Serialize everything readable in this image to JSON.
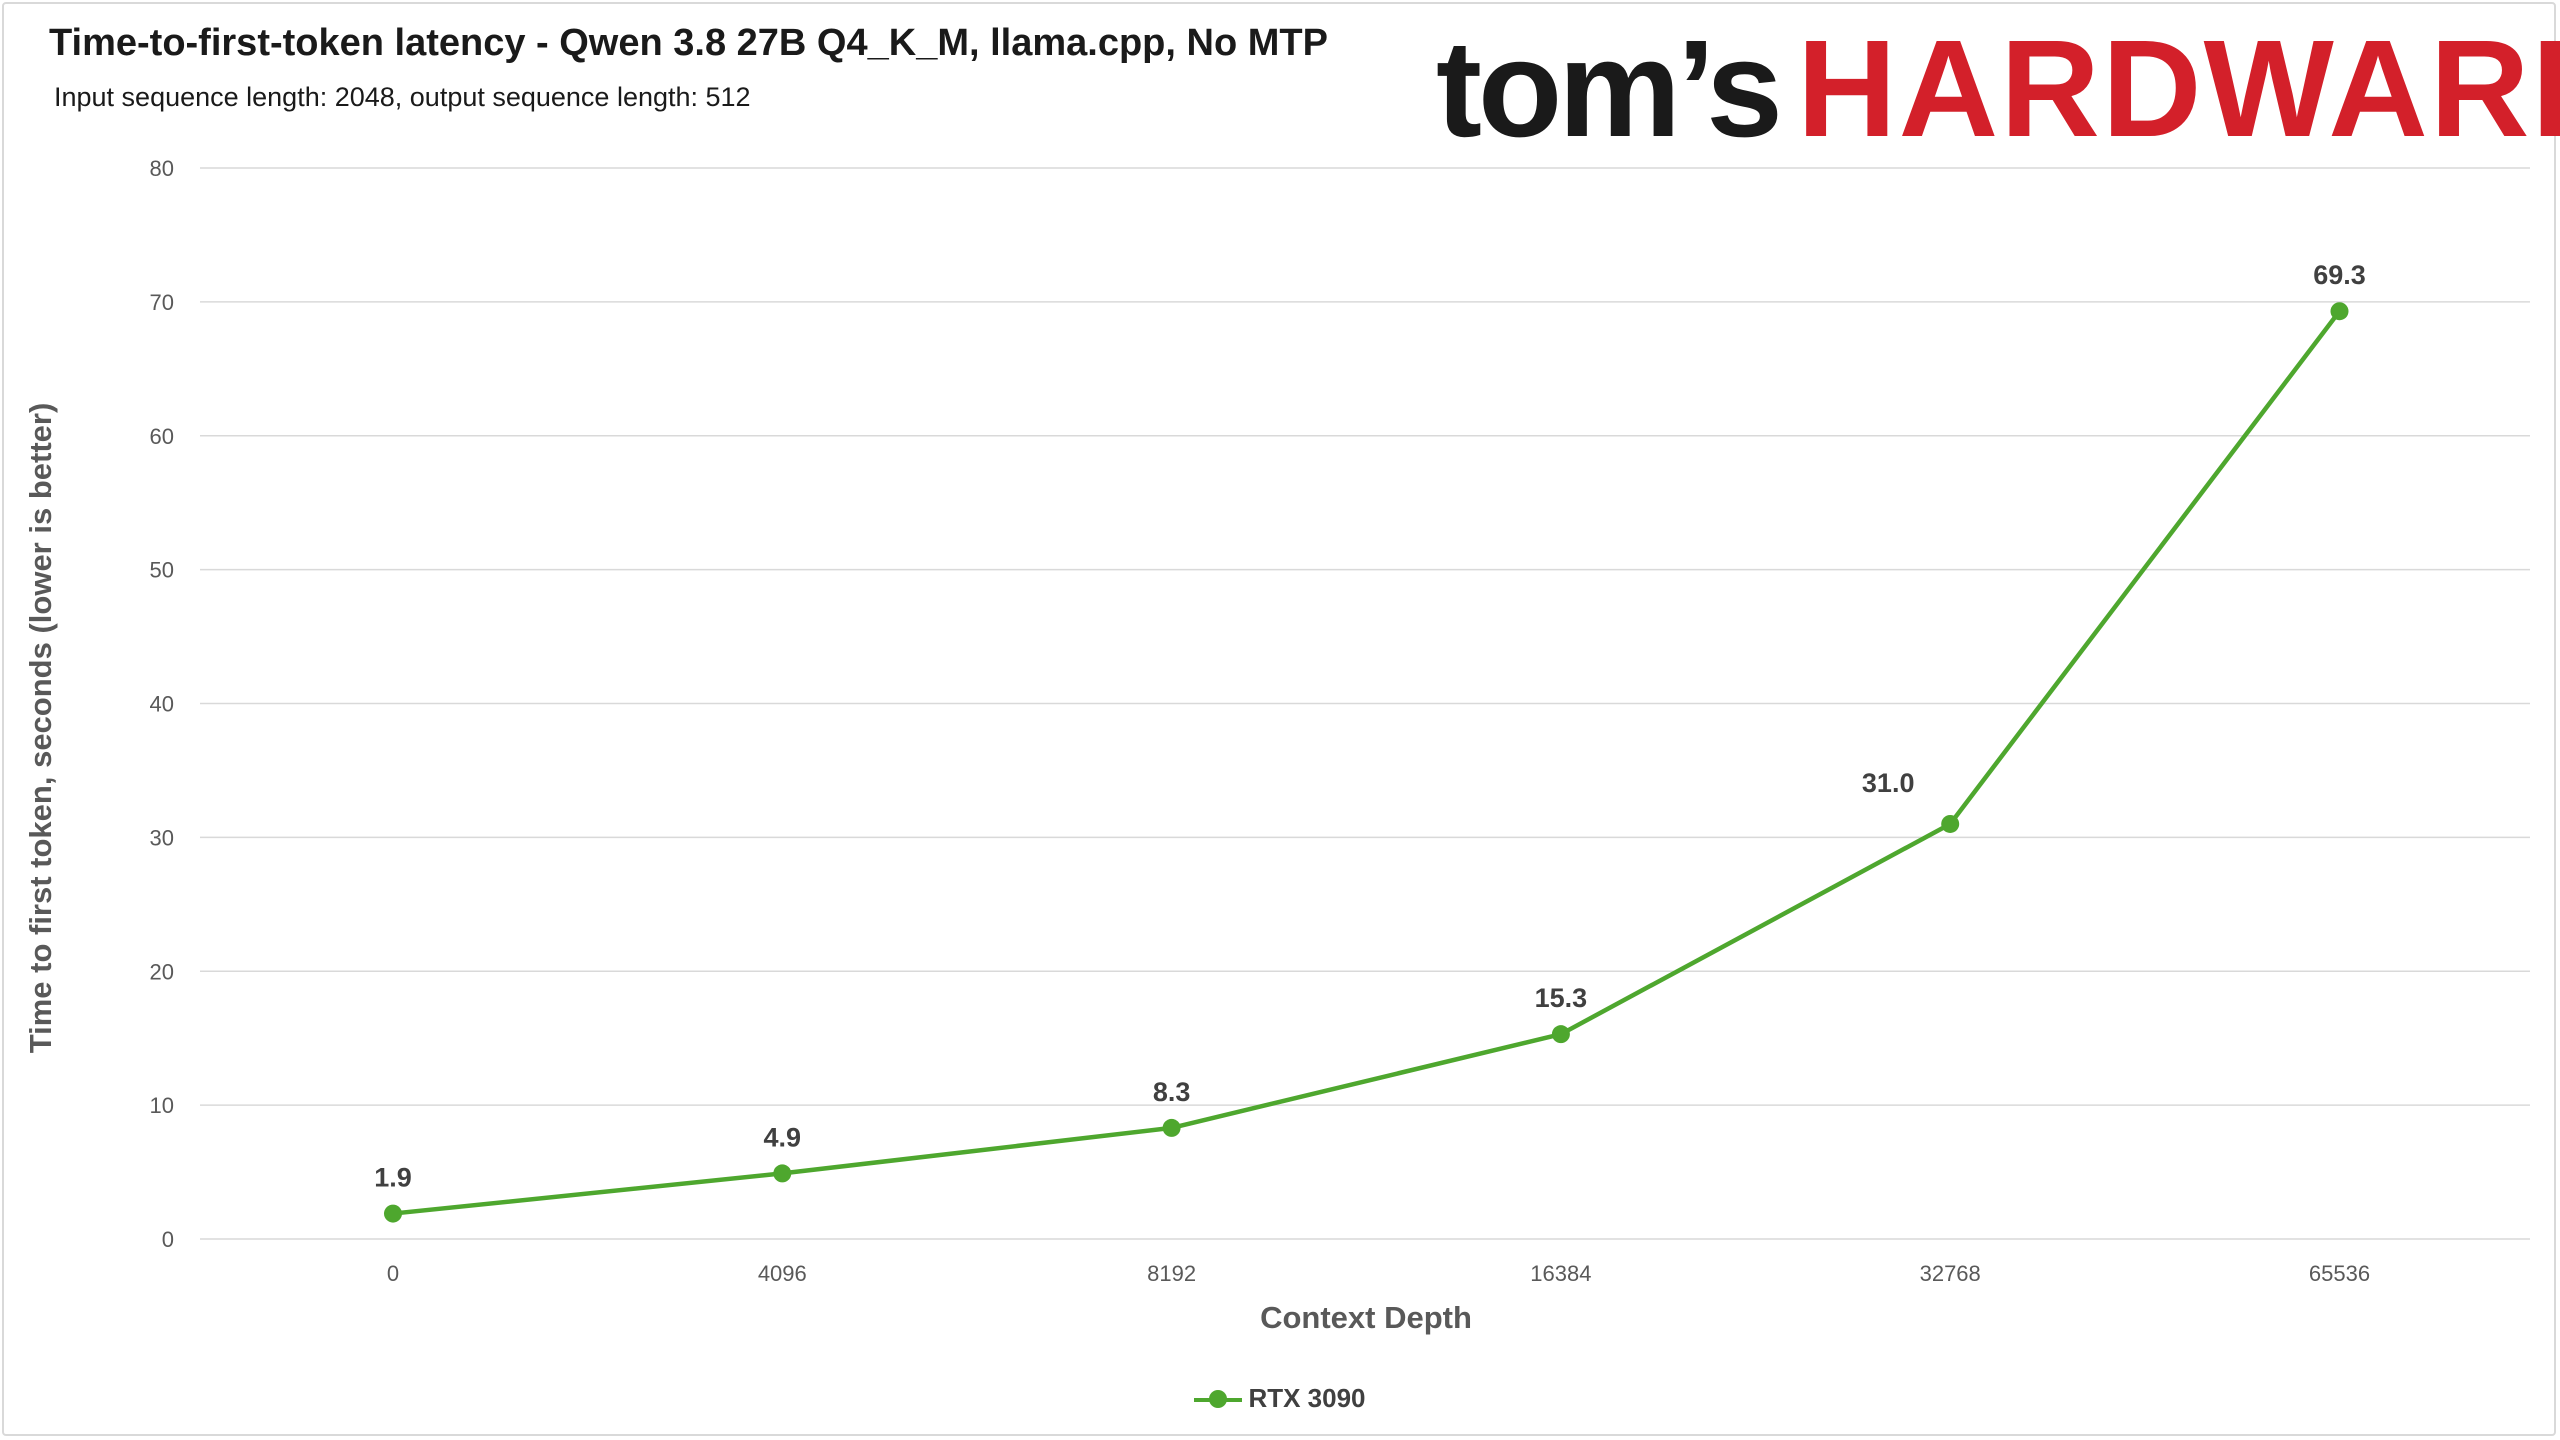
{
  "header": {
    "title": "Time-to-first-token latency - Qwen 3.8 27B Q4_K_M, llama.cpp, No MTP",
    "subtitle": "Input sequence length: 2048, output sequence length: 512"
  },
  "logo": {
    "part1": "tom’s",
    "part2": "HARDWARE"
  },
  "colors": {
    "series": "#4ea72e",
    "logo_red": "#d3202a",
    "grid": "#d9d9d9"
  },
  "chart_data": {
    "type": "line",
    "title": "Time-to-first-token latency - Qwen 3.8 27B Q4_K_M, llama.cpp, No MTP",
    "subtitle": "Input sequence length: 2048, output sequence length: 512",
    "xlabel": "Context Depth",
    "ylabel": "Time to first token, seconds (lower is better)",
    "categories": [
      "0",
      "4096",
      "8192",
      "16384",
      "32768",
      "65536"
    ],
    "series": [
      {
        "name": "RTX 3090",
        "values": [
          1.9,
          4.9,
          8.3,
          15.3,
          31.0,
          69.3
        ],
        "labels": [
          "1.9",
          "4.9",
          "8.3",
          "15.3",
          "31.0",
          "69.3"
        ]
      }
    ],
    "ylim": [
      0,
      80
    ],
    "yticks": [
      0,
      10,
      20,
      30,
      40,
      50,
      60,
      70,
      80
    ],
    "grid": true,
    "legend": "bottom-center"
  }
}
